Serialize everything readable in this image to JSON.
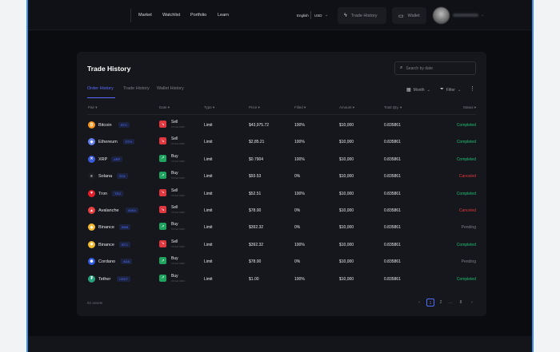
{
  "nav": {
    "links": [
      "Market",
      "Watchlist",
      "Portfolio",
      "Learn"
    ],
    "language": "English",
    "currency": "USD",
    "trade_history_btn": "Trade History",
    "wallet_btn": "Wallet"
  },
  "card": {
    "title": "Trade History",
    "search_placeholder": "Search by date",
    "tabs": [
      "Order History",
      "Trade History",
      "Wallet History"
    ],
    "month_label": "Month",
    "filter_label": "Filter"
  },
  "table": {
    "headers": [
      "Pair",
      "Date",
      "Type",
      "Price",
      "Filled",
      "Amount",
      "Total Qty.",
      "Status"
    ],
    "rows": [
      {
        "coin": "Bitcoin",
        "ticker": "BTC",
        "icon": "₿",
        "icon_color": "#f7931a",
        "side": "Sell",
        "date": "15 Feb 2023",
        "type": "Limit",
        "price": "$43,975.72",
        "filled": "100%",
        "amount": "$10,000",
        "qty": "0.835861",
        "status": "Completed"
      },
      {
        "coin": "Ethereum",
        "ticker": "ETH",
        "icon": "◆",
        "icon_color": "#627eea",
        "side": "Sell",
        "date": "15 Feb 2023",
        "type": "Limit",
        "price": "$2,85.21",
        "filled": "100%",
        "amount": "$10,000",
        "qty": "0.835861",
        "status": "Completed"
      },
      {
        "coin": "XRP",
        "ticker": "XRP",
        "icon": "✕",
        "icon_color": "#3a5bd9",
        "side": "Buy",
        "date": "15 Feb 2023",
        "type": "Limit",
        "price": "$0.7904",
        "filled": "100%",
        "amount": "$10,000",
        "qty": "0.835861",
        "status": "Completed"
      },
      {
        "coin": "Solana",
        "ticker": "SOL",
        "icon": "≡",
        "icon_color": "#1b1c22",
        "side": "Buy",
        "date": "15 Feb 2023",
        "type": "Limit",
        "price": "$93.53",
        "filled": "0%",
        "amount": "$10,000",
        "qty": "0.835861",
        "status": "Canceled"
      },
      {
        "coin": "Tron",
        "ticker": "TRX",
        "icon": "▼",
        "icon_color": "#e5202b",
        "side": "Sell",
        "date": "15 Feb 2023",
        "type": "Limit",
        "price": "$52.51",
        "filled": "100%",
        "amount": "$10,000",
        "qty": "0.835861",
        "status": "Completed"
      },
      {
        "coin": "Avalanche",
        "ticker": "AVAX",
        "icon": "▲",
        "icon_color": "#e84142",
        "side": "Sell",
        "date": "15 Feb 2023",
        "type": "Limit",
        "price": "$78.00",
        "filled": "0%",
        "amount": "$10,000",
        "qty": "0.835861",
        "status": "Canceled"
      },
      {
        "coin": "Binance",
        "ticker": "BNB",
        "icon": "◈",
        "icon_color": "#f3ba2f",
        "side": "Buy",
        "date": "15 Feb 2023",
        "type": "Limit",
        "price": "$392.32",
        "filled": "0%",
        "amount": "$10,000",
        "qty": "0.835861",
        "status": "Pending"
      },
      {
        "coin": "Binance",
        "ticker": "BTC",
        "icon": "◈",
        "icon_color": "#f3ba2f",
        "side": "Sell",
        "date": "15 Feb 2023",
        "type": "Limit",
        "price": "$392.32",
        "filled": "100%",
        "amount": "$10,000",
        "qty": "0.835861",
        "status": "Completed"
      },
      {
        "coin": "Cordano",
        "ticker": "ADA",
        "icon": "✺",
        "icon_color": "#2f5be0",
        "side": "Buy",
        "date": "15 Feb 2023",
        "type": "Limit",
        "price": "$78.00",
        "filled": "0%",
        "amount": "$10,000",
        "qty": "0.835861",
        "status": "Pending"
      },
      {
        "coin": "Tether",
        "ticker": "USDT",
        "icon": "₮",
        "icon_color": "#26a17b",
        "side": "Buy",
        "date": "15 Feb 2023",
        "type": "Limit",
        "price": "$1.00",
        "filled": "100%",
        "amount": "$10,000",
        "qty": "0.835861",
        "status": "Completed"
      }
    ]
  },
  "footer": {
    "assets_count": "52 assets",
    "pages": [
      "1",
      "2",
      "...",
      "8"
    ]
  },
  "colors": {
    "accent": "#5a6cff",
    "buy": "#1fa35f",
    "sell": "#e0383e",
    "completed": "#1fbf74",
    "canceled": "#e0383e",
    "pending": "#7d7f88"
  }
}
